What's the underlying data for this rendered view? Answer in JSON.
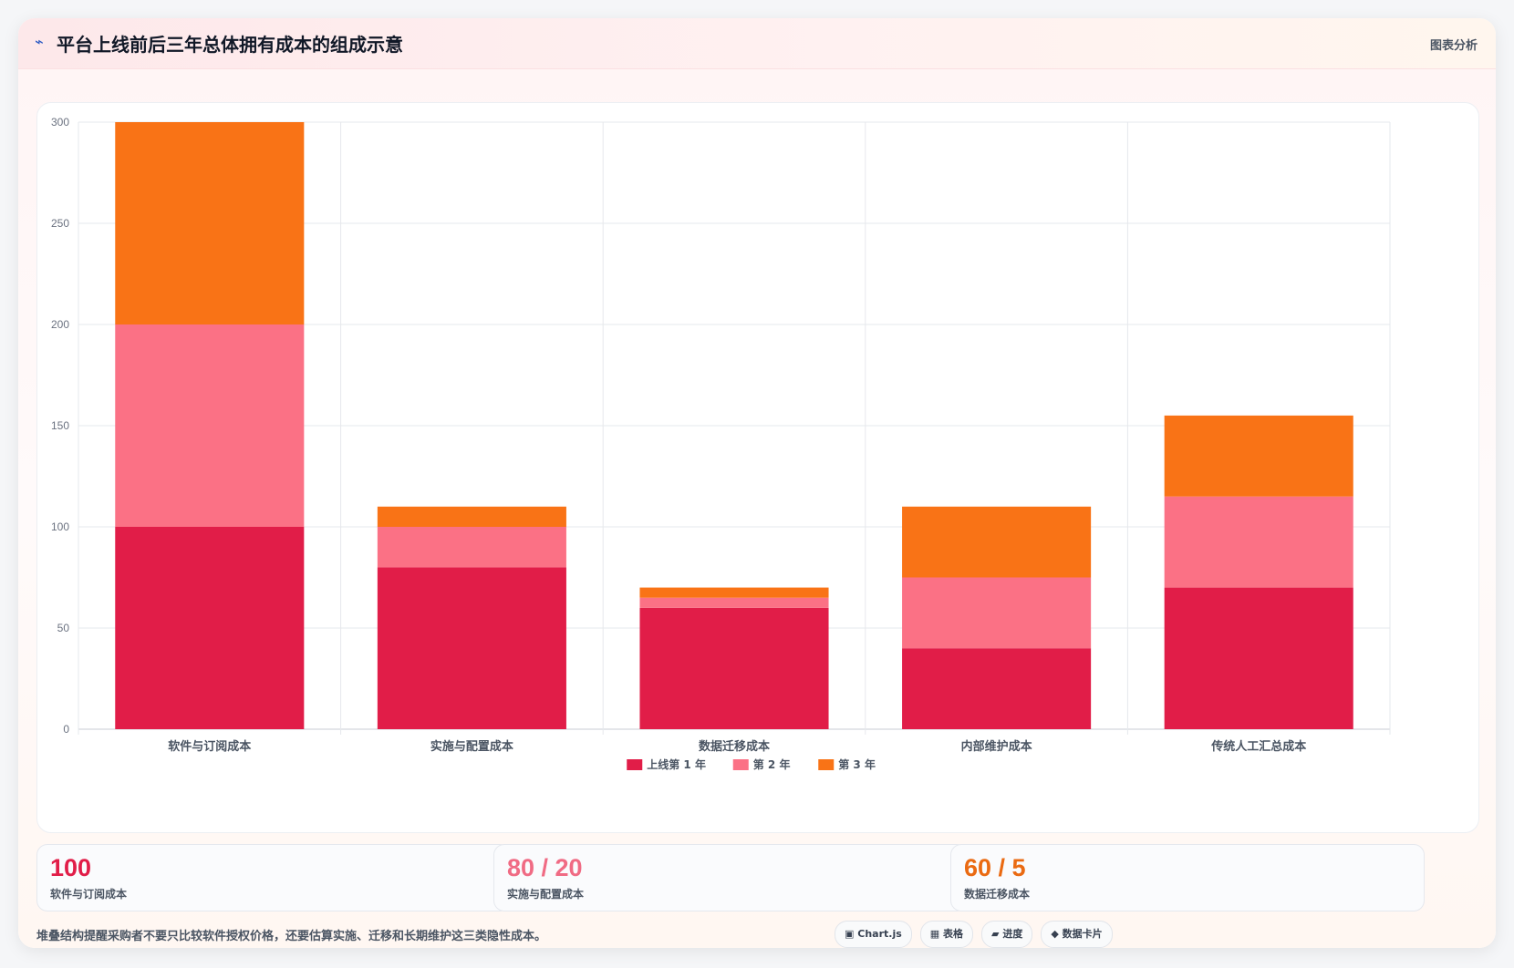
{
  "header": {
    "icon": "chart-line-icon",
    "title": "平台上线前后三年总体拥有成本的组成示意",
    "tag": "图表分析"
  },
  "colors": {
    "year1": "#e11d48",
    "year2": "#fb7185",
    "year3": "#f97316"
  },
  "chart_data": {
    "type": "bar",
    "stacked": true,
    "categories": [
      "软件与订阅成本",
      "实施与配置成本",
      "数据迁移成本",
      "内部维护成本",
      "传统人工汇总成本"
    ],
    "series": [
      {
        "name": "上线第 1 年",
        "values": [
          100,
          80,
          60,
          40,
          70
        ],
        "color": "#e11d48"
      },
      {
        "name": "第 2 年",
        "values": [
          100,
          20,
          5,
          35,
          45
        ],
        "color": "#fb7185"
      },
      {
        "name": "第 3 年",
        "values": [
          100,
          10,
          5,
          35,
          40
        ],
        "color": "#f97316"
      }
    ],
    "yticks": [
      0,
      50,
      100,
      150,
      200,
      250,
      300
    ],
    "ylim": [
      0,
      300
    ],
    "grid": true,
    "legend": "bottom"
  },
  "kpis": [
    {
      "value": "100",
      "label": "软件与订阅成本",
      "color": "#e11d48"
    },
    {
      "value": "80 / 20",
      "label": "实施与配置成本",
      "color": "#f06b84"
    },
    {
      "value": "60 / 5",
      "label": "数据迁移成本",
      "color": "#ea6a12"
    }
  ],
  "footnote": "堆叠结构提醒采购者不要只比较软件授权价格，还要估算实施、迁移和长期维护这三类隐性成本。",
  "tags": [
    {
      "icon": "chart-box-icon",
      "glyph": "▣",
      "label": "Chart.js"
    },
    {
      "icon": "table-icon",
      "glyph": "▦",
      "label": "表格"
    },
    {
      "icon": "progress-icon",
      "glyph": "▰",
      "label": "进度"
    },
    {
      "icon": "data-card-icon",
      "glyph": "◆",
      "label": "数据卡片"
    }
  ]
}
